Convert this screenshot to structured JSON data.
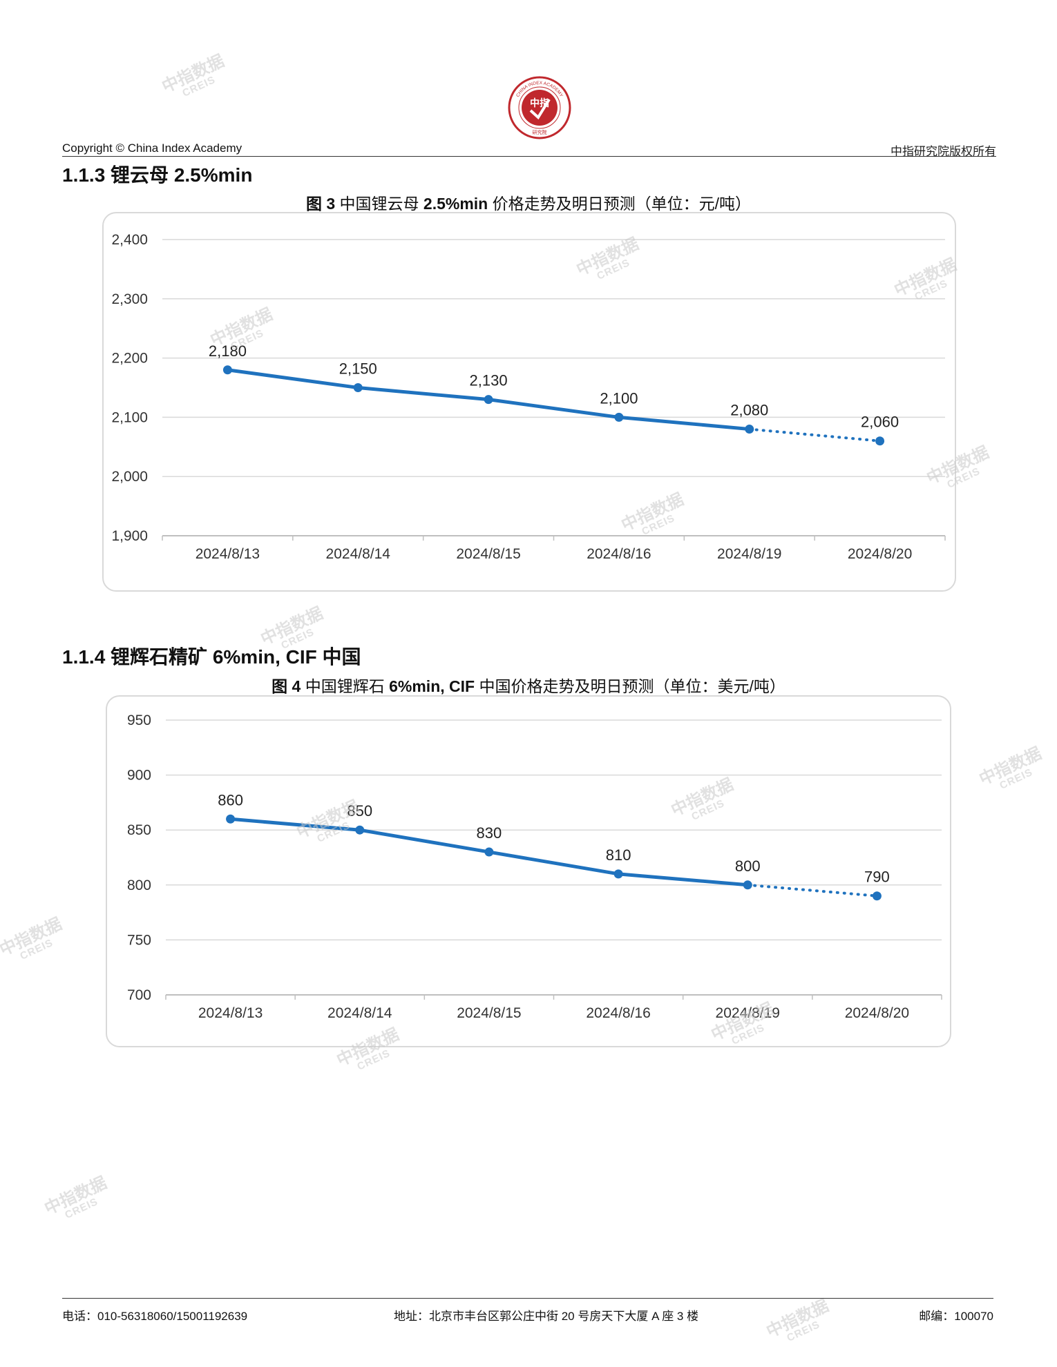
{
  "header": {
    "left": "Copyright © China Index Academy",
    "right": "中指研究院版权所有",
    "logo_top_text": "CHINA INDEX ACADEMY",
    "logo_center_text": "中指",
    "logo_bottom_text": "研究院"
  },
  "watermark": {
    "line1": "中指数据",
    "line2": "CREIS"
  },
  "sections": [
    {
      "title": "1.1.3 锂云母 2.5%min",
      "chart_title_prefix": "图 3",
      "chart_title_body": " 中国锂云母 ",
      "chart_title_bold": "2.5%min",
      "chart_title_suffix": " 价格走势及明日预测（单位：元/吨）"
    },
    {
      "title": "1.1.4 锂辉石精矿 6%min, CIF 中国",
      "chart_title_prefix": "图 4",
      "chart_title_body": " 中国锂辉石 ",
      "chart_title_bold": "6%min, CIF",
      "chart_title_suffix": " 中国价格走势及明日预测（单位：美元/吨）"
    }
  ],
  "chart_data": [
    {
      "type": "line",
      "title": "图 3 中国锂云母 2.5%min 价格走势及明日预测（单位：元/吨）",
      "categories": [
        "2024/8/13",
        "2024/8/14",
        "2024/8/15",
        "2024/8/16",
        "2024/8/19",
        "2024/8/20"
      ],
      "values": [
        2180,
        2150,
        2130,
        2100,
        2080,
        2060
      ],
      "value_labels": [
        "2,180",
        "2,150",
        "2,130",
        "2,100",
        "2,080",
        "2,060"
      ],
      "forecast_last_point": true,
      "ylim": [
        1900,
        2400
      ],
      "yticks": [
        1900,
        2000,
        2100,
        2200,
        2300,
        2400
      ],
      "ytick_labels": [
        "1,900",
        "2,000",
        "2,100",
        "2,200",
        "2,300",
        "2,400"
      ],
      "grid": true,
      "color": "#1f72be"
    },
    {
      "type": "line",
      "title": "图 4 中国锂辉石 6%min, CIF 中国价格走势及明日预测（单位：美元/吨）",
      "categories": [
        "2024/8/13",
        "2024/8/14",
        "2024/8/15",
        "2024/8/16",
        "2024/8/19",
        "2024/8/20"
      ],
      "values": [
        860,
        850,
        830,
        810,
        800,
        790
      ],
      "value_labels": [
        "860",
        "850",
        "830",
        "810",
        "800",
        "790"
      ],
      "forecast_last_point": true,
      "ylim": [
        700,
        950
      ],
      "yticks": [
        700,
        750,
        800,
        850,
        900,
        950
      ],
      "ytick_labels": [
        "700",
        "750",
        "800",
        "850",
        "900",
        "950"
      ],
      "grid": true,
      "color": "#1f72be"
    }
  ],
  "footer": {
    "phone": "电话：010-56318060/15001192639",
    "address": "地址：北京市丰台区郭公庄中街 20 号房天下大厦 A 座 3 楼",
    "postcode": "邮编：100070"
  }
}
